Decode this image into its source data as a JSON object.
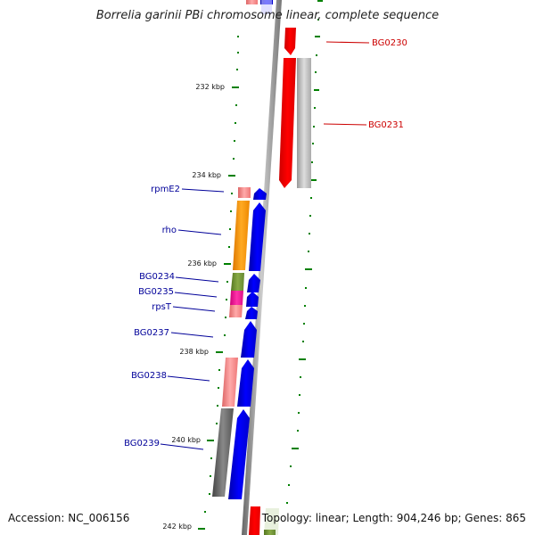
{
  "title": "Borrelia garinii PBi chromosome linear, complete sequence",
  "footer": {
    "accession_label": "Accession:",
    "accession": "NC_006156",
    "topology_label": "Topology:",
    "topology": "linear",
    "length_label": "Length:",
    "length": "904,246 bp",
    "genes_label": "Genes:",
    "genes": "865"
  },
  "colors": {
    "backbone": "#8a8a8a",
    "forward_strand": "#0000ff",
    "reverse_red": "#ff0000",
    "pseudo_gray": "#bbbbbb",
    "orange": "#ff9900",
    "olive": "#669933",
    "magenta": "#ee1188",
    "salmon": "#ee7777",
    "dark_gray": "#666666",
    "tick_green": "#008000",
    "label_red": "#cc0000",
    "label_blue": "#000099"
  },
  "scale_ticks": [
    "232 kbp",
    "234 kbp",
    "236 kbp",
    "238 kbp",
    "240 kbp",
    "242 kbp"
  ],
  "gene_labels": [
    {
      "name": "BG0230",
      "side": "right",
      "color": "label_red"
    },
    {
      "name": "BG0231",
      "side": "right",
      "color": "label_red"
    },
    {
      "name": "rpmE2",
      "side": "left",
      "color": "label_blue"
    },
    {
      "name": "rho",
      "side": "left",
      "color": "label_blue"
    },
    {
      "name": "BG0234",
      "side": "left",
      "color": "label_blue"
    },
    {
      "name": "BG0235",
      "side": "left",
      "color": "label_blue"
    },
    {
      "name": "rpsT",
      "side": "left",
      "color": "label_blue"
    },
    {
      "name": "BG0237",
      "side": "left",
      "color": "label_blue"
    },
    {
      "name": "BG0238",
      "side": "left",
      "color": "label_blue"
    },
    {
      "name": "BG0239",
      "side": "left",
      "color": "label_blue"
    }
  ]
}
